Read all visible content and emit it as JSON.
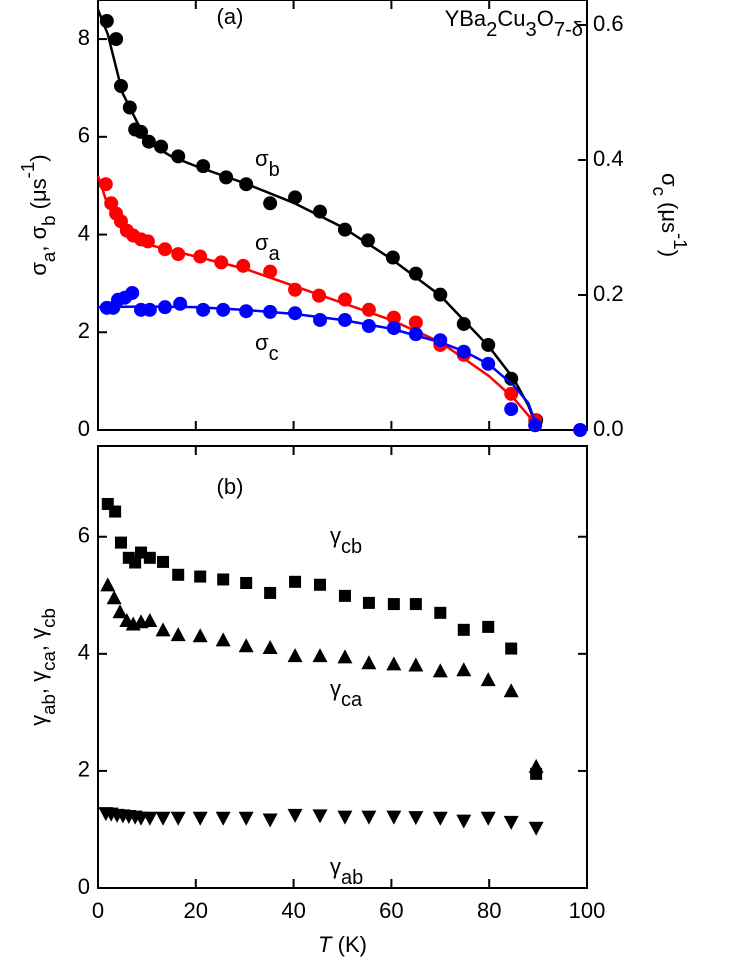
{
  "chart_data": [
    {
      "type": "scatter",
      "xlim": [
        0,
        100
      ],
      "xticks": [
        0,
        20,
        40,
        60,
        80,
        100
      ],
      "ylim": [
        0,
        8.8
      ],
      "yticks": [
        0,
        2,
        4,
        6,
        8
      ],
      "y2lim": [
        0,
        0.637
      ],
      "y2ticks": [
        {
          "value": 0,
          "label": "0.0"
        },
        {
          "value": 0.2,
          "label": "0.2"
        },
        {
          "value": 0.4,
          "label": "0.4"
        },
        {
          "value": 0.6,
          "label": "0.6"
        }
      ],
      "ylabel": [
        {
          "text": "σ"
        },
        {
          "text": "a",
          "sub": true
        },
        {
          "text": ", σ"
        },
        {
          "text": "b",
          "sub": true
        },
        {
          "text": " (μs"
        },
        {
          "text": "-1",
          "sup": true
        },
        {
          "text": ")"
        }
      ],
      "y2label": [
        {
          "text": "σ"
        },
        {
          "text": "c",
          "sub": true
        },
        {
          "text": " (μs"
        },
        {
          "text": "-1",
          "sup": true
        },
        {
          "text": ")"
        }
      ],
      "annotations": [
        {
          "parts": [
            {
              "text": "(a)"
            }
          ]
        },
        {
          "parts": [
            {
              "text": "YBa"
            },
            {
              "text": "2",
              "sub": true
            },
            {
              "text": "Cu"
            },
            {
              "text": "3",
              "sub": true
            },
            {
              "text": "O"
            },
            {
              "text": "7-δ",
              "sub": true
            }
          ]
        }
      ],
      "series": [
        {
          "label": {
            "base": "σ",
            "sub": "b"
          },
          "color": "#000000",
          "marker": "circle",
          "x": [
            1.8,
            3.7,
            4.7,
            6.5,
            7.6,
            8.8,
            10.4,
            12.9,
            16.4,
            21.5,
            26.2,
            30.3,
            35.2,
            40.3,
            45.4,
            50.5,
            55.2,
            60.3,
            65,
            70,
            74.8,
            79.8,
            84.5,
            89.6
          ],
          "values": [
            8.37,
            8.0,
            7.04,
            6.6,
            6.15,
            6.1,
            5.9,
            5.8,
            5.6,
            5.4,
            5.17,
            5.03,
            4.64,
            4.76,
            4.47,
            4.1,
            3.88,
            3.53,
            3.2,
            2.77,
            2.17,
            1.74,
            1.05,
            0.2
          ],
          "fit": {
            "x": [
              0,
              2,
              5,
              10,
              15,
              20,
              30,
              40,
              50,
              60,
              70,
              80,
              85,
              88,
              90
            ],
            "values": [
              8.6,
              8.1,
              6.9,
              5.9,
              5.6,
              5.4,
              5.05,
              4.65,
              4.15,
              3.5,
              2.75,
              1.7,
              1.05,
              0.5,
              0.0
            ]
          }
        },
        {
          "label": {
            "base": "σ",
            "sub": "a"
          },
          "color": "#ff0000",
          "marker": "circle",
          "x": [
            1.6,
            2.7,
            3.7,
            4.7,
            5.9,
            7.2,
            8.8,
            10.2,
            13.7,
            16.4,
            20.9,
            25.2,
            29.7,
            35.2,
            40.3,
            45.2,
            50.5,
            55.4,
            60.5,
            65,
            70,
            74.8,
            84.5,
            89.4
          ],
          "values": [
            5.03,
            4.64,
            4.43,
            4.27,
            4.08,
            3.98,
            3.9,
            3.86,
            3.7,
            3.6,
            3.55,
            3.43,
            3.36,
            3.24,
            2.87,
            2.75,
            2.67,
            2.46,
            2.3,
            2.2,
            1.74,
            1.54,
            0.74,
            0.2
          ],
          "fit": {
            "x": [
              0,
              2,
              5,
              10,
              20,
              30,
              40,
              50,
              60,
              70,
              80,
              85,
              88,
              90
            ],
            "values": [
              5.2,
              4.6,
              4.1,
              3.8,
              3.55,
              3.3,
              2.95,
              2.6,
              2.25,
              1.8,
              1.1,
              0.65,
              0.3,
              0
            ]
          }
        },
        {
          "label": {
            "base": "σ",
            "sub": "c"
          },
          "color": "#0000ff",
          "marker": "circle",
          "axis": "y2",
          "x": [
            1.8,
            3.1,
            4.1,
            5.5,
            7,
            8.8,
            10.6,
            13.7,
            16.8,
            21.5,
            25.6,
            30.3,
            35.2,
            40.3,
            45.4,
            50.5,
            55.4,
            60.5,
            65,
            70,
            74.8,
            79.8,
            84.5,
            89.4,
            98.6
          ],
          "values": [
            0.181,
            0.181,
            0.193,
            0.196,
            0.203,
            0.178,
            0.178,
            0.182,
            0.187,
            0.178,
            0.178,
            0.176,
            0.175,
            0.173,
            0.163,
            0.163,
            0.154,
            0.151,
            0.142,
            0.133,
            0.116,
            0.098,
            0.031,
            0.007,
            0
          ],
          "fit": {
            "x": [
              0,
              10,
              20,
              30,
              40,
              50,
              60,
              70,
              75,
              80,
              85,
              88,
              90
            ],
            "values": [
              0.182,
              0.183,
              0.182,
              0.178,
              0.172,
              0.163,
              0.15,
              0.13,
              0.116,
              0.097,
              0.066,
              0.04,
              0
            ]
          }
        }
      ]
    },
    {
      "type": "scatter",
      "xlim": [
        0,
        100
      ],
      "xticks": [
        0,
        20,
        40,
        60,
        80,
        100
      ],
      "ylim": [
        0,
        7.55
      ],
      "yticks": [
        0,
        2,
        4,
        6
      ],
      "xlabel": [
        {
          "text": "T",
          "italic": true
        },
        {
          "text": " (K)"
        }
      ],
      "ylabel": [
        {
          "text": "γ"
        },
        {
          "text": "ab",
          "sub": true
        },
        {
          "text": ", γ"
        },
        {
          "text": "ca",
          "sub": true
        },
        {
          "text": ", γ"
        },
        {
          "text": "cb",
          "sub": true
        }
      ],
      "annotations": [
        {
          "parts": [
            {
              "text": "(b)"
            }
          ]
        }
      ],
      "series": [
        {
          "label": {
            "base": "γ",
            "sub": "cb"
          },
          "color": "#000000",
          "marker": "square",
          "x": [
            2,
            3.5,
            4.7,
            6.3,
            7.6,
            8.8,
            10.6,
            13.3,
            16.4,
            20.9,
            25.6,
            30.3,
            35.2,
            40.3,
            45.4,
            50.5,
            55.4,
            60.5,
            65,
            70,
            74.8,
            79.8,
            84.5,
            89.6
          ],
          "values": [
            6.56,
            6.43,
            5.9,
            5.64,
            5.56,
            5.73,
            5.64,
            5.57,
            5.35,
            5.32,
            5.27,
            5.21,
            5.04,
            5.23,
            5.18,
            4.99,
            4.87,
            4.85,
            4.85,
            4.7,
            4.41,
            4.46,
            4.09,
            1.95
          ]
        },
        {
          "label": {
            "base": "γ",
            "sub": "ca"
          },
          "color": "#000000",
          "marker": "triangle-up",
          "x": [
            2,
            3.3,
            4.5,
            5.9,
            7.2,
            8.8,
            10.6,
            13.3,
            16.4,
            20.9,
            25.6,
            30.3,
            35.2,
            40.3,
            45.4,
            50.5,
            55.4,
            60.5,
            65,
            70,
            74.8,
            79.8,
            84.5,
            89.6
          ],
          "values": [
            5.17,
            4.95,
            4.71,
            4.56,
            4.5,
            4.54,
            4.56,
            4.4,
            4.32,
            4.3,
            4.23,
            4.13,
            4.1,
            3.96,
            3.96,
            3.94,
            3.84,
            3.82,
            3.8,
            3.7,
            3.72,
            3.55,
            3.36,
            2.07
          ]
        },
        {
          "label": {
            "base": "γ",
            "sub": "ab"
          },
          "color": "#000000",
          "marker": "triangle-down",
          "x": [
            1.6,
            2.7,
            3.9,
            5.1,
            6.3,
            7.6,
            8.8,
            10.6,
            13.3,
            16.4,
            20.9,
            25.6,
            30.3,
            35.2,
            40.3,
            45.4,
            50.5,
            55.4,
            60.5,
            65,
            70,
            74.8,
            79.8,
            84.5,
            89.6
          ],
          "values": [
            1.28,
            1.27,
            1.25,
            1.24,
            1.23,
            1.22,
            1.2,
            1.2,
            1.2,
            1.2,
            1.2,
            1.2,
            1.2,
            1.17,
            1.25,
            1.24,
            1.22,
            1.22,
            1.22,
            1.21,
            1.2,
            1.15,
            1.2,
            1.13,
            1.03
          ]
        }
      ]
    }
  ]
}
